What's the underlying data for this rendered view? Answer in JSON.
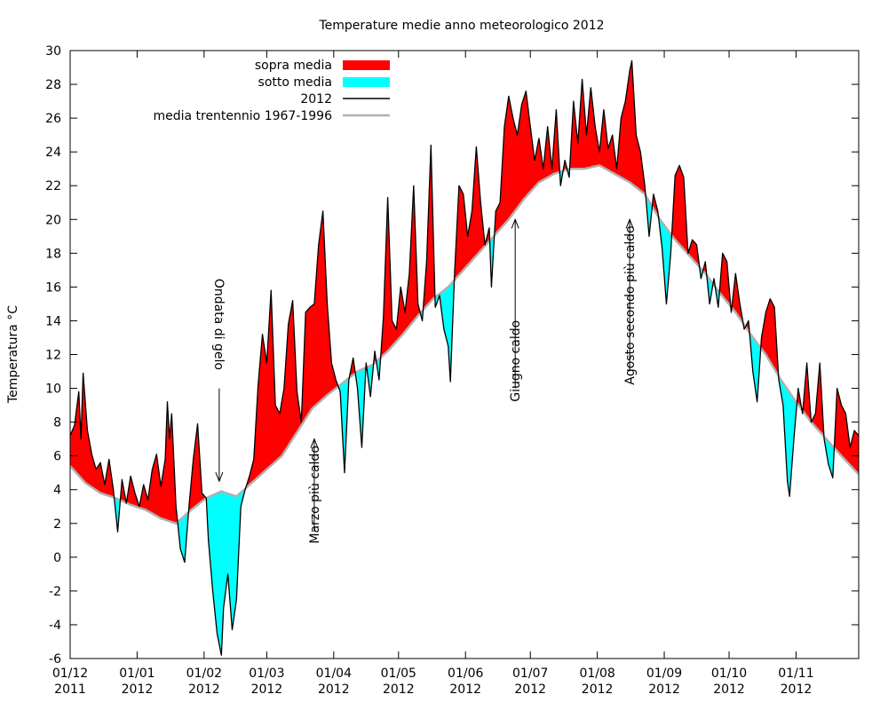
{
  "chart_data": {
    "type": "area",
    "title": "Temperature medie anno meteorologico 2012",
    "xlabel": "",
    "ylabel": "Temperatura °C",
    "ylim": [
      -6,
      30
    ],
    "yticks": [
      -6,
      -4,
      -2,
      0,
      2,
      4,
      6,
      8,
      10,
      12,
      14,
      16,
      18,
      20,
      22,
      24,
      26,
      28,
      30
    ],
    "xlim": [
      "2011-12-01",
      "2012-11-30"
    ],
    "xticks": [
      {
        "date": "2011-12-01",
        "line1": "01/12",
        "line2": "2011"
      },
      {
        "date": "2012-01-01",
        "line1": "01/01",
        "line2": "2012"
      },
      {
        "date": "2012-02-01",
        "line1": "01/02",
        "line2": "2012"
      },
      {
        "date": "2012-03-01",
        "line1": "01/03",
        "line2": "2012"
      },
      {
        "date": "2012-04-01",
        "line1": "01/04",
        "line2": "2012"
      },
      {
        "date": "2012-05-01",
        "line1": "01/05",
        "line2": "2012"
      },
      {
        "date": "2012-06-01",
        "line1": "01/06",
        "line2": "2012"
      },
      {
        "date": "2012-07-01",
        "line1": "01/07",
        "line2": "2012"
      },
      {
        "date": "2012-08-01",
        "line1": "01/08",
        "line2": "2012"
      },
      {
        "date": "2012-09-01",
        "line1": "01/09",
        "line2": "2012"
      },
      {
        "date": "2012-10-01",
        "line1": "01/10",
        "line2": "2012"
      },
      {
        "date": "2012-11-01",
        "line1": "01/11",
        "line2": "2012"
      }
    ],
    "legend_position": "top-left",
    "grid": false,
    "legend": [
      {
        "label": "sopra media",
        "kind": "fill",
        "color": "#ff0000"
      },
      {
        "label": "sotto media",
        "kind": "fill",
        "color": "#00ffff"
      },
      {
        "label": "2012",
        "kind": "line",
        "color": "#000000"
      },
      {
        "label": "media trentennio 1967-1996",
        "kind": "line",
        "color": "#b0b0b0"
      }
    ],
    "colors": {
      "above": "#ff0000",
      "below": "#00ffff",
      "actual": "#000000",
      "normal": "#b0b0b0"
    },
    "series": [
      {
        "name": "2012",
        "points": [
          [
            "2011-12-01",
            7.2
          ],
          [
            "2011-12-03",
            7.8
          ],
          [
            "2011-12-05",
            9.8
          ],
          [
            "2011-12-06",
            7.0
          ],
          [
            "2011-12-07",
            10.9
          ],
          [
            "2011-12-09",
            7.5
          ],
          [
            "2011-12-11",
            6.1
          ],
          [
            "2011-12-13",
            5.2
          ],
          [
            "2011-12-15",
            5.6
          ],
          [
            "2011-12-17",
            4.3
          ],
          [
            "2011-12-19",
            5.8
          ],
          [
            "2011-12-21",
            4.0
          ],
          [
            "2011-12-23",
            1.5
          ],
          [
            "2011-12-25",
            4.6
          ],
          [
            "2011-12-27",
            3.2
          ],
          [
            "2011-12-29",
            4.8
          ],
          [
            "2011-12-31",
            3.8
          ],
          [
            "2012-01-02",
            3.0
          ],
          [
            "2012-01-04",
            4.3
          ],
          [
            "2012-01-06",
            3.4
          ],
          [
            "2012-01-08",
            5.2
          ],
          [
            "2012-01-10",
            6.1
          ],
          [
            "2012-01-12",
            4.2
          ],
          [
            "2012-01-14",
            5.8
          ],
          [
            "2012-01-15",
            9.2
          ],
          [
            "2012-01-16",
            7.0
          ],
          [
            "2012-01-17",
            8.5
          ],
          [
            "2012-01-19",
            3.0
          ],
          [
            "2012-01-21",
            0.5
          ],
          [
            "2012-01-23",
            -0.3
          ],
          [
            "2012-01-25",
            3.0
          ],
          [
            "2012-01-27",
            5.8
          ],
          [
            "2012-01-29",
            7.9
          ],
          [
            "2012-01-31",
            3.8
          ],
          [
            "2012-02-02",
            3.5
          ],
          [
            "2012-02-03",
            1.0
          ],
          [
            "2012-02-05",
            -2.0
          ],
          [
            "2012-02-07",
            -4.5
          ],
          [
            "2012-02-09",
            -5.8
          ],
          [
            "2012-02-10",
            -3.0
          ],
          [
            "2012-02-12",
            -1.0
          ],
          [
            "2012-02-14",
            -4.3
          ],
          [
            "2012-02-16",
            -2.5
          ],
          [
            "2012-02-18",
            3.0
          ],
          [
            "2012-02-20",
            4.0
          ],
          [
            "2012-02-22",
            4.8
          ],
          [
            "2012-02-24",
            5.8
          ],
          [
            "2012-02-26",
            10.2
          ],
          [
            "2012-02-28",
            13.2
          ],
          [
            "2012-03-01",
            11.5
          ],
          [
            "2012-03-03",
            15.8
          ],
          [
            "2012-03-05",
            9.0
          ],
          [
            "2012-03-07",
            8.5
          ],
          [
            "2012-03-09",
            10.0
          ],
          [
            "2012-03-11",
            13.8
          ],
          [
            "2012-03-13",
            15.2
          ],
          [
            "2012-03-15",
            9.8
          ],
          [
            "2012-03-17",
            8.0
          ],
          [
            "2012-03-19",
            14.5
          ],
          [
            "2012-03-21",
            14.8
          ],
          [
            "2012-03-23",
            15.0
          ],
          [
            "2012-03-25",
            18.5
          ],
          [
            "2012-03-27",
            20.5
          ],
          [
            "2012-03-29",
            15.0
          ],
          [
            "2012-03-31",
            11.5
          ],
          [
            "2012-04-02",
            10.5
          ],
          [
            "2012-04-04",
            9.8
          ],
          [
            "2012-04-06",
            5.0
          ],
          [
            "2012-04-08",
            10.5
          ],
          [
            "2012-04-10",
            11.8
          ],
          [
            "2012-04-12",
            10.0
          ],
          [
            "2012-04-14",
            6.5
          ],
          [
            "2012-04-16",
            11.5
          ],
          [
            "2012-04-18",
            9.5
          ],
          [
            "2012-04-20",
            12.2
          ],
          [
            "2012-04-22",
            10.5
          ],
          [
            "2012-04-24",
            14.2
          ],
          [
            "2012-04-26",
            21.3
          ],
          [
            "2012-04-28",
            14.0
          ],
          [
            "2012-04-30",
            13.5
          ],
          [
            "2012-05-02",
            16.0
          ],
          [
            "2012-05-04",
            14.5
          ],
          [
            "2012-05-06",
            16.8
          ],
          [
            "2012-05-08",
            22.0
          ],
          [
            "2012-05-10",
            15.0
          ],
          [
            "2012-05-12",
            14.0
          ],
          [
            "2012-05-14",
            17.5
          ],
          [
            "2012-05-16",
            24.4
          ],
          [
            "2012-05-18",
            14.8
          ],
          [
            "2012-05-20",
            15.5
          ],
          [
            "2012-05-22",
            13.5
          ],
          [
            "2012-05-24",
            12.5
          ],
          [
            "2012-05-25",
            10.4
          ],
          [
            "2012-05-27",
            17.0
          ],
          [
            "2012-05-29",
            22.0
          ],
          [
            "2012-05-31",
            21.5
          ],
          [
            "2012-06-02",
            19.0
          ],
          [
            "2012-06-04",
            20.5
          ],
          [
            "2012-06-06",
            24.3
          ],
          [
            "2012-06-08",
            21.0
          ],
          [
            "2012-06-10",
            18.5
          ],
          [
            "2012-06-12",
            19.5
          ],
          [
            "2012-06-13",
            16.0
          ],
          [
            "2012-06-15",
            20.5
          ],
          [
            "2012-06-17",
            21.0
          ],
          [
            "2012-06-19",
            25.5
          ],
          [
            "2012-06-21",
            27.3
          ],
          [
            "2012-06-23",
            26.0
          ],
          [
            "2012-06-25",
            25.0
          ],
          [
            "2012-06-27",
            26.8
          ],
          [
            "2012-06-29",
            27.6
          ],
          [
            "2012-07-01",
            25.5
          ],
          [
            "2012-07-03",
            23.5
          ],
          [
            "2012-07-05",
            24.8
          ],
          [
            "2012-07-07",
            23.0
          ],
          [
            "2012-07-09",
            25.5
          ],
          [
            "2012-07-11",
            23.0
          ],
          [
            "2012-07-13",
            26.5
          ],
          [
            "2012-07-15",
            22.0
          ],
          [
            "2012-07-17",
            23.5
          ],
          [
            "2012-07-19",
            22.5
          ],
          [
            "2012-07-21",
            27.0
          ],
          [
            "2012-07-23",
            24.5
          ],
          [
            "2012-07-25",
            28.3
          ],
          [
            "2012-07-27",
            25.0
          ],
          [
            "2012-07-29",
            27.8
          ],
          [
            "2012-07-31",
            25.5
          ],
          [
            "2012-08-02",
            24.0
          ],
          [
            "2012-08-04",
            26.5
          ],
          [
            "2012-08-06",
            24.2
          ],
          [
            "2012-08-08",
            25.0
          ],
          [
            "2012-08-10",
            23.0
          ],
          [
            "2012-08-12",
            26.0
          ],
          [
            "2012-08-14",
            27.0
          ],
          [
            "2012-08-16",
            28.8
          ],
          [
            "2012-08-17",
            29.4
          ],
          [
            "2012-08-19",
            25.0
          ],
          [
            "2012-08-21",
            24.0
          ],
          [
            "2012-08-23",
            22.0
          ],
          [
            "2012-08-25",
            19.0
          ],
          [
            "2012-08-27",
            21.5
          ],
          [
            "2012-08-29",
            20.5
          ],
          [
            "2012-08-31",
            18.3
          ],
          [
            "2012-09-02",
            15.0
          ],
          [
            "2012-09-04",
            18.0
          ],
          [
            "2012-09-06",
            22.6
          ],
          [
            "2012-09-08",
            23.2
          ],
          [
            "2012-09-10",
            22.5
          ],
          [
            "2012-09-12",
            18.0
          ],
          [
            "2012-09-14",
            18.8
          ],
          [
            "2012-09-16",
            18.5
          ],
          [
            "2012-09-18",
            16.5
          ],
          [
            "2012-09-20",
            17.5
          ],
          [
            "2012-09-22",
            15.0
          ],
          [
            "2012-09-24",
            16.5
          ],
          [
            "2012-09-26",
            14.8
          ],
          [
            "2012-09-28",
            18.0
          ],
          [
            "2012-09-30",
            17.5
          ],
          [
            "2012-10-02",
            14.5
          ],
          [
            "2012-10-04",
            16.8
          ],
          [
            "2012-10-06",
            15.0
          ],
          [
            "2012-10-08",
            13.5
          ],
          [
            "2012-10-10",
            14.0
          ],
          [
            "2012-10-12",
            11.0
          ],
          [
            "2012-10-14",
            9.2
          ],
          [
            "2012-10-16",
            13.0
          ],
          [
            "2012-10-18",
            14.5
          ],
          [
            "2012-10-20",
            15.3
          ],
          [
            "2012-10-22",
            14.8
          ],
          [
            "2012-10-24",
            10.5
          ],
          [
            "2012-10-26",
            9.0
          ],
          [
            "2012-10-28",
            4.5
          ],
          [
            "2012-10-29",
            3.6
          ],
          [
            "2012-10-31",
            7.0
          ],
          [
            "2012-11-02",
            10.0
          ],
          [
            "2012-11-04",
            8.5
          ],
          [
            "2012-11-06",
            11.5
          ],
          [
            "2012-11-08",
            8.0
          ],
          [
            "2012-11-10",
            8.5
          ],
          [
            "2012-11-12",
            11.5
          ],
          [
            "2012-11-14",
            7.0
          ],
          [
            "2012-11-16",
            5.5
          ],
          [
            "2012-11-18",
            4.7
          ],
          [
            "2012-11-20",
            10.0
          ],
          [
            "2012-11-22",
            9.0
          ],
          [
            "2012-11-24",
            8.5
          ],
          [
            "2012-11-26",
            6.5
          ],
          [
            "2012-11-28",
            7.5
          ],
          [
            "2012-11-30",
            7.2
          ]
        ]
      },
      {
        "name": "media trentennio 1967-1996",
        "points": [
          [
            "2011-12-01",
            5.4
          ],
          [
            "2011-12-08",
            4.4
          ],
          [
            "2011-12-15",
            3.8
          ],
          [
            "2011-12-22",
            3.5
          ],
          [
            "2011-12-29",
            3.1
          ],
          [
            "2012-01-05",
            2.8
          ],
          [
            "2012-01-12",
            2.3
          ],
          [
            "2012-01-19",
            2.0
          ],
          [
            "2012-01-26",
            2.8
          ],
          [
            "2012-02-02",
            3.5
          ],
          [
            "2012-02-09",
            3.9
          ],
          [
            "2012-02-16",
            3.6
          ],
          [
            "2012-02-23",
            4.4
          ],
          [
            "2012-03-01",
            5.2
          ],
          [
            "2012-03-08",
            6.0
          ],
          [
            "2012-03-15",
            7.4
          ],
          [
            "2012-03-22",
            8.8
          ],
          [
            "2012-03-29",
            9.6
          ],
          [
            "2012-04-05",
            10.3
          ],
          [
            "2012-04-12",
            11.0
          ],
          [
            "2012-04-19",
            11.4
          ],
          [
            "2012-04-26",
            12.2
          ],
          [
            "2012-05-03",
            13.2
          ],
          [
            "2012-05-10",
            14.3
          ],
          [
            "2012-05-17",
            15.3
          ],
          [
            "2012-05-24",
            16.0
          ],
          [
            "2012-05-31",
            17.0
          ],
          [
            "2012-06-07",
            18.0
          ],
          [
            "2012-06-14",
            19.0
          ],
          [
            "2012-06-21",
            20.0
          ],
          [
            "2012-06-28",
            21.2
          ],
          [
            "2012-07-05",
            22.2
          ],
          [
            "2012-07-12",
            22.7
          ],
          [
            "2012-07-19",
            23.0
          ],
          [
            "2012-07-26",
            23.0
          ],
          [
            "2012-08-02",
            23.2
          ],
          [
            "2012-08-09",
            22.7
          ],
          [
            "2012-08-16",
            22.2
          ],
          [
            "2012-08-23",
            21.5
          ],
          [
            "2012-08-30",
            20.0
          ],
          [
            "2012-09-06",
            18.8
          ],
          [
            "2012-09-13",
            17.8
          ],
          [
            "2012-09-20",
            16.8
          ],
          [
            "2012-09-27",
            15.6
          ],
          [
            "2012-10-04",
            14.5
          ],
          [
            "2012-10-11",
            13.2
          ],
          [
            "2012-10-18",
            12.0
          ],
          [
            "2012-10-25",
            10.5
          ],
          [
            "2012-11-01",
            9.2
          ],
          [
            "2012-11-08",
            8.0
          ],
          [
            "2012-11-15",
            7.0
          ],
          [
            "2012-11-22",
            6.0
          ],
          [
            "2012-11-30",
            4.9
          ]
        ]
      }
    ],
    "annotations": [
      {
        "text": "Ondata di gelo",
        "date": "2012-02-08",
        "arrow_from": 10.0,
        "arrow_to": 4.5,
        "text_from": 16.5,
        "text_dir": "down"
      },
      {
        "text": "Marzo più caldo",
        "date": "2012-03-23",
        "arrow_from": 1.5,
        "arrow_to": 7.0,
        "text_from": 0.8,
        "text_dir": "up"
      },
      {
        "text": "Giugno caldo",
        "date": "2012-06-24",
        "arrow_from": 10.0,
        "arrow_to": 20.0,
        "text_from": 9.2,
        "text_dir": "up"
      },
      {
        "text": "Agosto secondo più caldo",
        "date": "2012-08-16",
        "arrow_from": 11.0,
        "arrow_to": 20.0,
        "text_from": 10.2,
        "text_dir": "up"
      }
    ]
  }
}
